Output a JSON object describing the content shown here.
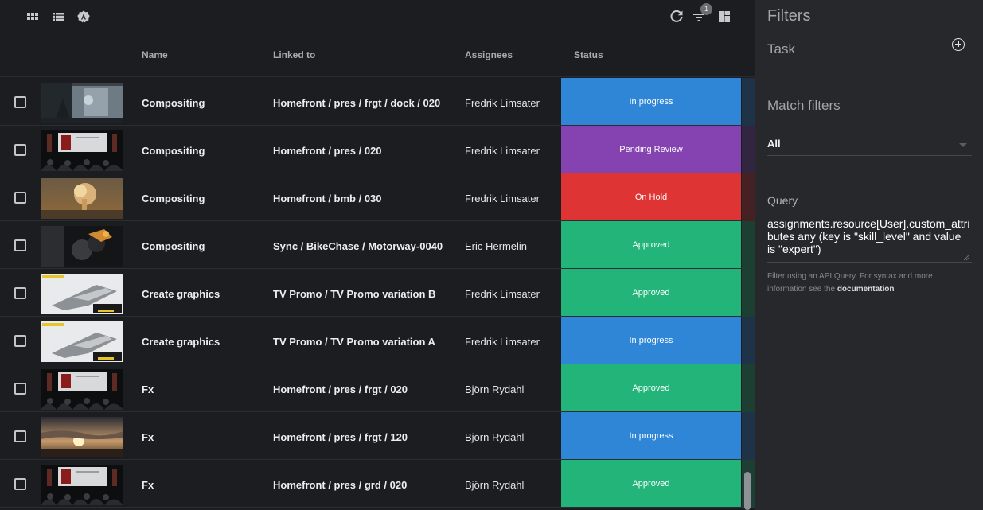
{
  "toolbar": {
    "left_icons": [
      "grid-view-icon",
      "list-view-icon",
      "app-badge-icon"
    ],
    "right_icons": [
      "refresh-icon",
      "filter-icon",
      "layout-icon"
    ],
    "filter_count": "1"
  },
  "columns": {
    "name": "Name",
    "linked_to": "Linked to",
    "assignees": "Assignees",
    "status": "Status"
  },
  "status_colors": {
    "In progress": "#2f86d6",
    "Pending Review": "#8443b0",
    "On Hold": "#de3434",
    "Approved": "#22b478"
  },
  "rows": [
    {
      "name": "Compositing",
      "linked_to": "Homefront / pres / frgt / dock / 020",
      "assignee": "Fredrik Limsater",
      "status": "In progress",
      "thumb": "robot-hangar"
    },
    {
      "name": "Compositing",
      "linked_to": "Homefront / pres / 020",
      "assignee": "Fredrik Limsater",
      "status": "Pending Review",
      "thumb": "presentation-stage"
    },
    {
      "name": "Compositing",
      "linked_to": "Homefront / bmb / 030",
      "assignee": "Fredrik Limsater",
      "status": "On Hold",
      "thumb": "explosion"
    },
    {
      "name": "Compositing",
      "linked_to": "Sync / BikeChase / Motorway-0040",
      "assignee": "Eric Hermelin",
      "status": "Approved",
      "thumb": "motorbike"
    },
    {
      "name": "Create graphics",
      "linked_to": "TV Promo / TV Promo variation B",
      "assignee": "Fredrik Limsater",
      "status": "Approved",
      "thumb": "spaceship-poster"
    },
    {
      "name": "Create graphics",
      "linked_to": "TV Promo / TV Promo variation A",
      "assignee": "Fredrik Limsater",
      "status": "In progress",
      "thumb": "spaceship-poster"
    },
    {
      "name": "Fx",
      "linked_to": "Homefront / pres / frgt / 020",
      "assignee": "Björn Rydahl",
      "status": "Approved",
      "thumb": "presentation-stage"
    },
    {
      "name": "Fx",
      "linked_to": "Homefront / pres / frgt / 120",
      "assignee": "Björn Rydahl",
      "status": "In progress",
      "thumb": "sunset-sky"
    },
    {
      "name": "Fx",
      "linked_to": "Homefront / pres / grd / 020",
      "assignee": "Björn Rydahl",
      "status": "Approved",
      "thumb": "presentation-stage"
    }
  ],
  "filters": {
    "title": "Filters",
    "task_label": "Task",
    "match_label": "Match filters",
    "match_value": "All",
    "query_label": "Query",
    "query_value": "assignments.resource[User].custom_attributes any (key is \"skill_level\" and value is \"expert\")",
    "help_text": "Filter using an API Query. For syntax and more information see the ",
    "help_link": "documentation"
  }
}
